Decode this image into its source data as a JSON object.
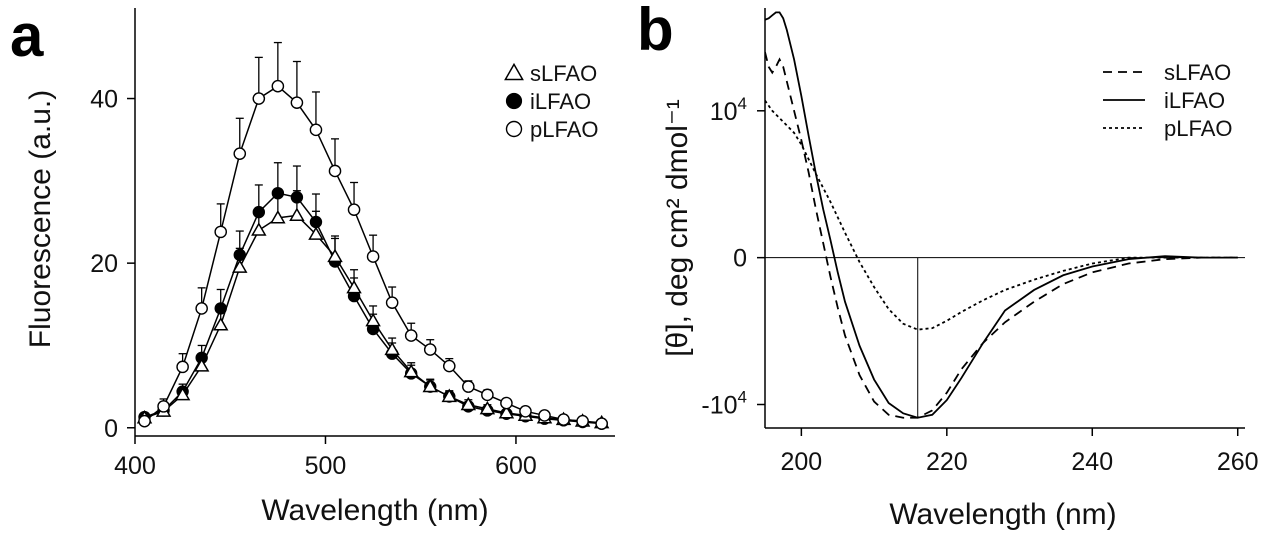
{
  "chart_data": [
    {
      "panel_label": "a",
      "type": "line",
      "xlabel": "Wavelength (nm)",
      "ylabel": "Fluorescence (a.u.)",
      "xlim": [
        400,
        652
      ],
      "ylim": [
        -1,
        51
      ],
      "x_ticks": [
        400,
        500,
        600
      ],
      "y_ticks": [
        0,
        20,
        40
      ],
      "legend_position": "top-right",
      "x": [
        405,
        415,
        425,
        435,
        445,
        455,
        465,
        475,
        485,
        495,
        505,
        515,
        525,
        535,
        545,
        555,
        565,
        575,
        585,
        595,
        605,
        615,
        625,
        635,
        645
      ],
      "series": [
        {
          "name": "sLFAO",
          "marker": "open-triangle",
          "values": [
            1.2,
            2.0,
            4.0,
            7.5,
            12.5,
            19.5,
            24.0,
            25.5,
            25.8,
            23.5,
            20.8,
            17.0,
            13.0,
            9.5,
            6.8,
            5.0,
            3.8,
            2.8,
            2.3,
            1.8,
            1.5,
            1.2,
            1.0,
            0.8,
            0.6
          ],
          "error": [
            0.4,
            0.5,
            0.8,
            1.2,
            1.8,
            2.3,
            2.7,
            2.9,
            3.0,
            2.8,
            2.5,
            2.2,
            1.8,
            1.4,
            1.1,
            0.9,
            0.7,
            0.6,
            0.5,
            0.4,
            0.4,
            0.3,
            0.3,
            0.3,
            0.3
          ]
        },
        {
          "name": "iLFAO",
          "marker": "filled-circle",
          "values": [
            1.3,
            2.1,
            4.4,
            8.5,
            14.5,
            21.0,
            26.2,
            28.5,
            28.0,
            25.0,
            20.2,
            16.0,
            12.0,
            9.0,
            6.6,
            5.0,
            3.8,
            2.6,
            2.1,
            1.7,
            1.4,
            1.1,
            0.9,
            0.7,
            0.5
          ],
          "error": [
            0.4,
            0.6,
            0.9,
            1.5,
            2.3,
            2.9,
            3.3,
            3.7,
            3.8,
            3.4,
            2.8,
            2.2,
            1.8,
            1.3,
            1.0,
            0.8,
            0.6,
            0.5,
            0.4,
            0.4,
            0.3,
            0.3,
            0.3,
            0.3,
            0.2
          ]
        },
        {
          "name": "pLFAO",
          "marker": "open-circle",
          "values": [
            0.8,
            2.6,
            7.4,
            14.5,
            23.8,
            33.3,
            40.0,
            41.5,
            39.5,
            36.2,
            31.2,
            26.5,
            20.8,
            15.2,
            11.2,
            9.5,
            7.5,
            5.0,
            4.0,
            3.0,
            2.0,
            1.5,
            1.0,
            0.8,
            0.5
          ],
          "error": [
            0.5,
            0.9,
            1.6,
            2.5,
            3.4,
            4.3,
            5.0,
            5.3,
            5.0,
            4.6,
            3.9,
            3.3,
            2.6,
            1.9,
            1.5,
            1.2,
            0.9,
            0.7,
            0.6,
            0.5,
            0.4,
            0.4,
            0.3,
            0.3,
            0.2
          ]
        }
      ]
    },
    {
      "panel_label": "b",
      "type": "line",
      "xlabel": "Wavelength (nm)",
      "ylabel": "[θ], deg cm² dmol⁻¹",
      "xlim": [
        195,
        261
      ],
      "ylim": [
        -11600,
        17000
      ],
      "x_ticks": [
        200,
        220,
        240,
        260
      ],
      "y_ticks": [
        {
          "value": 10000,
          "base": "10",
          "exp": "4"
        },
        {
          "value": 0,
          "base": "0",
          "exp": ""
        },
        {
          "value": -10000,
          "base": "-10",
          "exp": "4"
        }
      ],
      "reference_lines": {
        "y_zero": 0,
        "x_min": 216
      },
      "legend_position": "top-right",
      "series": [
        {
          "name": "sLFAO",
          "line_style": "dashed",
          "x": [
            195,
            195.5,
            196,
            196.5,
            197,
            197.5,
            198,
            199,
            200,
            201,
            202,
            203,
            204,
            205,
            206,
            208,
            210,
            212,
            214,
            216,
            218,
            220,
            222,
            225,
            228,
            232,
            236,
            240,
            245,
            250,
            255,
            260
          ],
          "y": [
            14000,
            13000,
            12600,
            13000,
            13500,
            13000,
            12000,
            10000,
            8000,
            5800,
            3300,
            1000,
            -1300,
            -3400,
            -5300,
            -8000,
            -9800,
            -10700,
            -10900,
            -10900,
            -10400,
            -9200,
            -7600,
            -5800,
            -4400,
            -3000,
            -1800,
            -1000,
            -400,
            -100,
            0,
            0
          ]
        },
        {
          "name": "iLFAO",
          "line_style": "solid",
          "x": [
            195,
            195.5,
            196,
            196.5,
            197,
            197.5,
            198,
            199,
            200,
            201,
            202,
            203,
            204,
            205,
            206,
            208,
            210,
            212,
            214,
            216,
            218,
            220,
            222,
            225,
            228,
            232,
            236,
            240,
            245,
            250,
            255,
            260
          ],
          "y": [
            16200,
            16300,
            16500,
            16700,
            16700,
            16300,
            15500,
            13500,
            11000,
            8300,
            5700,
            3300,
            1200,
            -1000,
            -3000,
            -6000,
            -8300,
            -9900,
            -10600,
            -10900,
            -10700,
            -9700,
            -8200,
            -5800,
            -3600,
            -2200,
            -1200,
            -600,
            -100,
            100,
            0,
            0
          ]
        },
        {
          "name": "pLFAO",
          "line_style": "dotted",
          "x": [
            195,
            196,
            197,
            198,
            199,
            200,
            202,
            204,
            206,
            208,
            210,
            212,
            214,
            216,
            218,
            220,
            222,
            225,
            228,
            232,
            236,
            240,
            245,
            250,
            255,
            260
          ],
          "y": [
            10700,
            10000,
            9500,
            9000,
            8500,
            7700,
            5700,
            3800,
            1700,
            -300,
            -2000,
            -3500,
            -4500,
            -4900,
            -4800,
            -4300,
            -3700,
            -2900,
            -2200,
            -1500,
            -900,
            -400,
            0,
            0,
            0,
            0
          ]
        }
      ]
    }
  ]
}
